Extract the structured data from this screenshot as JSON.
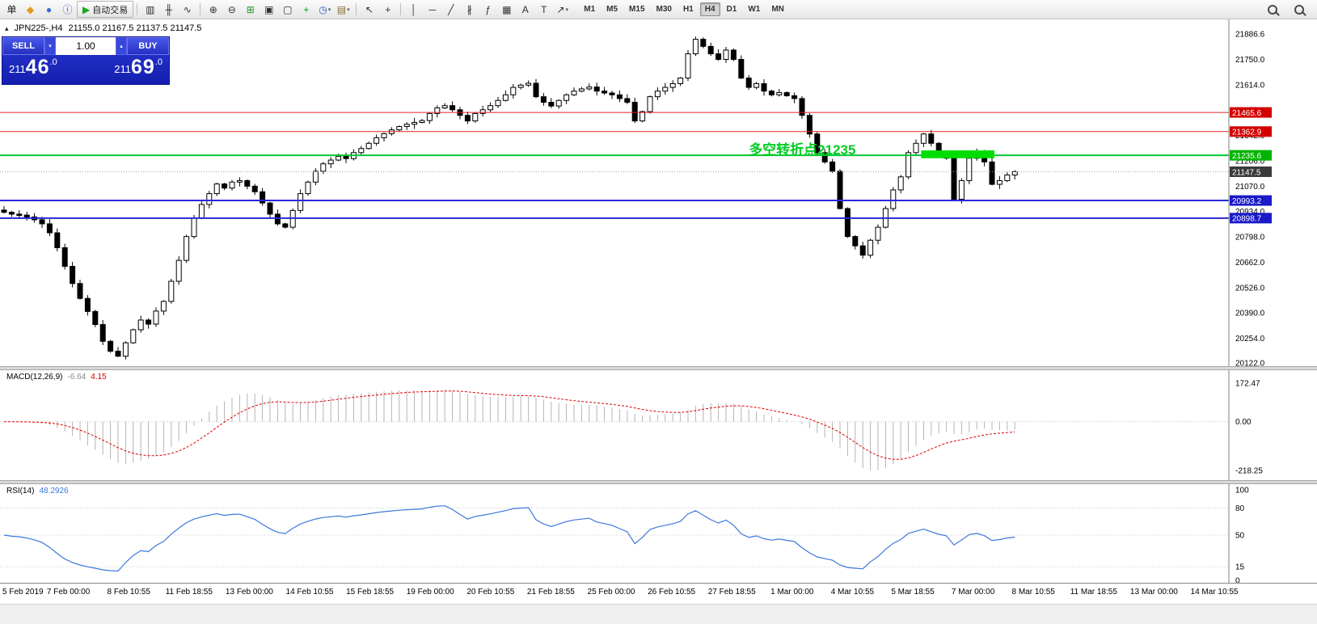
{
  "symbol_header": {
    "symbol": "JPN225-,H4",
    "ohlc": "21155.0 21167.5 21137.5 21147.5"
  },
  "trade_panel": {
    "sell_label": "SELL",
    "buy_label": "BUY",
    "volume": "1.00",
    "sell_price_small": "211",
    "sell_price_big": "46",
    "sell_price_frac": ".0",
    "buy_price_small": "211",
    "buy_price_big": "69",
    "buy_price_frac": ".0"
  },
  "indicators": {
    "macd": {
      "name": "MACD(12,26,9)",
      "hist_value": "-6.64",
      "signal_value": "4.15"
    },
    "rsi": {
      "name": "RSI(14)",
      "value": "48.2926"
    }
  },
  "toolbar": {
    "left_items": [
      {
        "base": "new-order",
        "glyph": "单",
        "color": "#202020"
      },
      {
        "base": "new-chart",
        "glyph": "◆",
        "color": "#e09a18"
      },
      {
        "base": "market-watch",
        "glyph": "●",
        "color": "#3468d0"
      },
      {
        "base": "info",
        "glyph": "ⓘ",
        "color": "#2858c8"
      },
      {
        "base": "autotrading",
        "glyph": "▶",
        "color": "#18a818",
        "label": "自动交易",
        "framed": true
      },
      {
        "sep": true
      },
      {
        "base": "bar-chart-type",
        "glyph": "▥",
        "color": "#303030"
      },
      {
        "base": "candlestick-chart-type",
        "glyph": "╫",
        "color": "#303030"
      },
      {
        "base": "line-chart-type",
        "glyph": "∿",
        "color": "#303030"
      },
      {
        "sep": true
      },
      {
        "base": "zoom-in",
        "glyph": "⊕",
        "color": "#303030"
      },
      {
        "base": "zoom-out",
        "glyph": "⊖",
        "color": "#303030"
      },
      {
        "base": "tile-windows",
        "glyph": "⊞",
        "color": "#1c941c"
      },
      {
        "base": "cascade-windows",
        "glyph": "▣",
        "color": "#303030"
      },
      {
        "base": "arrange-windows",
        "glyph": "▢",
        "color": "#303030"
      },
      {
        "base": "add-indicator",
        "glyph": "+",
        "color": "#0a9a0a"
      },
      {
        "base": "periods",
        "glyph": "◷",
        "color": "#2858c8",
        "dropdown": true
      },
      {
        "base": "templates",
        "glyph": "▤",
        "color": "#8a6a30",
        "dropdown": true
      },
      {
        "sep": true
      },
      {
        "base": "cursor",
        "glyph": "↖",
        "color": "#303030"
      },
      {
        "base": "crosshair",
        "glyph": "+",
        "color": "#303030"
      },
      {
        "sep": true
      },
      {
        "base": "vertical-line",
        "glyph": "│",
        "color": "#303030"
      },
      {
        "base": "horizontal-line",
        "glyph": "─",
        "color": "#303030"
      },
      {
        "base": "trendline",
        "glyph": "╱",
        "color": "#303030"
      },
      {
        "base": "equidistant-channel",
        "glyph": "∦",
        "color": "#303030"
      },
      {
        "base": "fibonacci",
        "glyph": "ƒ",
        "color": "#303030"
      },
      {
        "base": "grid",
        "glyph": "▦",
        "color": "#303030"
      },
      {
        "base": "text",
        "glyph": "A",
        "color": "#303030"
      },
      {
        "base": "text-label",
        "glyph": "T",
        "color": "#303030"
      },
      {
        "base": "arrows",
        "glyph": "↗",
        "color": "#303030",
        "dropdown": true
      }
    ],
    "timeframes": {
      "labels": [
        "M1",
        "M5",
        "M15",
        "M30",
        "H1",
        "H4",
        "D1",
        "W1",
        "MN"
      ],
      "active": "H4"
    },
    "right_items": [
      {
        "base": "search"
      },
      {
        "base": "zoom-search"
      }
    ]
  },
  "chart_data": [
    {
      "type": "candlestick",
      "symbol": "JPN225-",
      "timeframe": "H4",
      "current_ohlc": [
        21155.0,
        21167.5,
        21137.5,
        21147.5
      ],
      "ylim": [
        20122.0,
        21886.6
      ],
      "y_ticks": [
        "21886.6",
        "21750.0",
        "21614.0",
        "21478.0",
        "21342.0",
        "21206.0",
        "21070.0",
        "20934.0",
        "20798.0",
        "20662.0",
        "20526.0",
        "20390.0",
        "20254.0",
        "20122.0"
      ],
      "x_labels": [
        "5 Feb 2019",
        "7 Feb 00:00",
        "8 Feb 10:55",
        "11 Feb 18:55",
        "13 Feb 00:00",
        "14 Feb 10:55",
        "15 Feb 18:55",
        "19 Feb 00:00",
        "20 Feb 10:55",
        "21 Feb 18:55",
        "25 Feb 00:00",
        "26 Feb 10:55",
        "27 Feb 18:55",
        "1 Mar 00:00",
        "4 Mar 10:55",
        "5 Mar 18:55",
        "7 Mar 00:00",
        "8 Mar 10:55",
        "11 Mar 18:55",
        "13 Mar 00:00",
        "14 Mar 10:55"
      ],
      "closes": [
        20930,
        20920,
        20915,
        20905,
        20890,
        20868,
        20820,
        20740,
        20640,
        20548,
        20468,
        20398,
        20328,
        20238,
        20185,
        20158,
        20230,
        20300,
        20352,
        20330,
        20400,
        20452,
        20560,
        20672,
        20800,
        20900,
        20972,
        21030,
        21082,
        21060,
        21092,
        21100,
        21070,
        21040,
        20980,
        20920,
        20868,
        20850,
        20940,
        21030,
        21092,
        21150,
        21190,
        21210,
        21230,
        21218,
        21250,
        21272,
        21300,
        21330,
        21352,
        21372,
        21390,
        21402,
        21412,
        21422,
        21460,
        21490,
        21502,
        21480,
        21450,
        21420,
        21460,
        21480,
        21502,
        21530,
        21560,
        21600,
        21612,
        21622,
        21550,
        21520,
        21500,
        21530,
        21560,
        21580,
        21592,
        21602,
        21580,
        21570,
        21560,
        21540,
        21520,
        21420,
        21470,
        21550,
        21580,
        21600,
        21620,
        21650,
        21780,
        21858,
        21820,
        21780,
        21750,
        21800,
        21750,
        21650,
        21600,
        21620,
        21580,
        21560,
        21572,
        21555,
        21540,
        21450,
        21350,
        21250,
        21200,
        21150,
        20950,
        20800,
        20750,
        20700,
        20780,
        20850,
        20950,
        21050,
        21120,
        21250,
        21300,
        21350,
        21300,
        21250,
        21220,
        21000,
        21100,
        21220,
        21250,
        21200,
        21080,
        21100,
        21130,
        21147.5
      ],
      "hlines": [
        {
          "price": 21465.6,
          "label": "21465.6",
          "color": "#e02020",
          "tag": "#d40000",
          "width": 1
        },
        {
          "price": 21362.9,
          "label": "21362.9",
          "color": "#e02020",
          "tag": "#d40000",
          "width": 1
        },
        {
          "price": 21235.6,
          "label": "21235.6",
          "color": "#00c832",
          "tag": "#00b400",
          "width": 2
        },
        {
          "price": 20993.2,
          "label": "20993.2",
          "color": "#2828d7",
          "tag": "#1a1ac8",
          "width": 2
        },
        {
          "price": 20898.7,
          "label": "20898.7",
          "color": "#2828d7",
          "tag": "#1a1ac8",
          "width": 2
        }
      ],
      "current_price": {
        "price": 21147.5,
        "label": "21147.5",
        "tag": "#3a3a3a"
      },
      "annotation": {
        "text": "多空转折点21235",
        "color": "#00cc22",
        "index_x": 98,
        "price": 21240,
        "font_size": 17
      },
      "highlight_rect": {
        "from_index": 121,
        "to_index": 130,
        "price_top": 21262,
        "price_bottom": 21220,
        "color": "#00dd00"
      },
      "candle_up_fill": "#ffffff",
      "candle_down_fill": "#000000",
      "candle_border": "#000000"
    },
    {
      "type": "bar",
      "title": "MACD(12,26,9)",
      "current_macd": -6.64,
      "current_signal": 4.15,
      "ylim": [
        -218.25,
        172.47
      ],
      "y_ticks": [
        "172.47",
        "0.00",
        "-218.25"
      ],
      "hist_color": "#b4b4b4",
      "signal_color": "#e00000",
      "derived": "EMA(12)-EMA(26) of main closes, signal EMA(9)"
    },
    {
      "type": "line",
      "title": "RSI(14)",
      "current": 48.2926,
      "range": [
        0,
        100
      ],
      "y_ticks": [
        "100",
        "80",
        "50",
        "15",
        "0"
      ],
      "levels": [
        80,
        50,
        15
      ],
      "line_color": "#3c78dc"
    }
  ]
}
